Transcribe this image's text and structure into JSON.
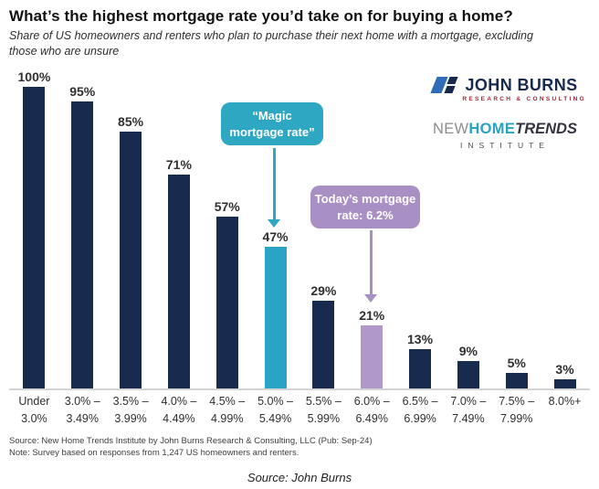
{
  "header": {
    "title": "What’s the highest mortgage rate you’d take on for buying a home?",
    "subtitle": "Share of US homeowners and renters who plan to purchase their next home with a mortgage, excluding those who are unsure"
  },
  "branding": {
    "john_burns": {
      "name": "JOHN BURNS",
      "tagline": "RESEARCH & CONSULTING"
    },
    "new_home_trends": {
      "word1": "NEW",
      "word2": "HOME",
      "word3": "TRENDS",
      "tagline": "INSTITUTE"
    }
  },
  "annotations": {
    "magic": {
      "line1": "“Magic",
      "line2": "mortgage rate”",
      "color": "#2ea7c2"
    },
    "today": {
      "line1": "Today’s mortgage",
      "line2": "rate: 6.2%",
      "color": "#a88fc4"
    }
  },
  "chart_data": {
    "type": "bar",
    "title": "What’s the highest mortgage rate you’d take on for buying a home?",
    "categories": [
      "Under 3.0%",
      "3.0% – 3.49%",
      "3.5% – 3.99%",
      "4.0% – 4.49%",
      "4.5% – 4.99%",
      "5.0% – 5.49%",
      "5.5% – 5.99%",
      "6.0% – 6.49%",
      "6.5% – 6.99%",
      "7.0% – 7.49%",
      "7.5% – 7.99%",
      "8.0%+"
    ],
    "category_lines": [
      [
        "Under",
        "3.0%"
      ],
      [
        "3.0% –",
        "3.49%"
      ],
      [
        "3.5% –",
        "3.99%"
      ],
      [
        "4.0% –",
        "4.49%"
      ],
      [
        "4.5% –",
        "4.99%"
      ],
      [
        "5.0% –",
        "5.49%"
      ],
      [
        "5.5% –",
        "5.99%"
      ],
      [
        "6.0% –",
        "6.49%"
      ],
      [
        "6.5% –",
        "6.99%"
      ],
      [
        "7.0% –",
        "7.49%"
      ],
      [
        "7.5% –",
        "7.99%"
      ],
      [
        "8.0%+",
        ""
      ]
    ],
    "values": [
      100,
      95,
      85,
      71,
      57,
      47,
      29,
      21,
      13,
      9,
      5,
      3
    ],
    "value_labels": [
      "100%",
      "95%",
      "85%",
      "71%",
      "57%",
      "47%",
      "29%",
      "21%",
      "13%",
      "9%",
      "5%",
      "3%"
    ],
    "unit": "%",
    "ylim": [
      0,
      100
    ],
    "grid": false,
    "legend": false,
    "highlight": {
      "magic_index": 5,
      "today_index": 7
    },
    "colors": {
      "default": "#182a4d",
      "magic": "#2aa4c4",
      "today": "#b198ca"
    }
  },
  "footer": {
    "source_line": "Source: New Home Trends Institute by John Burns Research & Consulting, LLC (Pub: Sep-24)",
    "note_line": "Note: Survey based on responses from 1,247 US homeowners and renters.",
    "caption": "Source: John Burns"
  }
}
